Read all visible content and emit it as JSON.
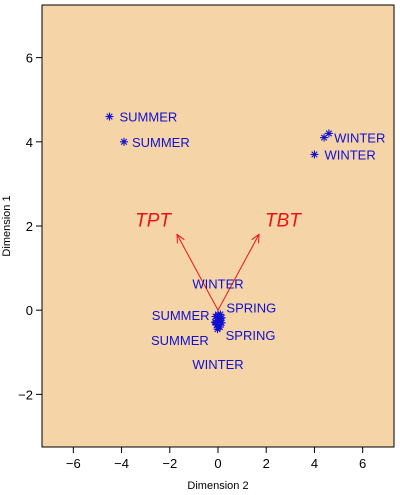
{
  "chart_data": {
    "type": "scatter",
    "title": "",
    "xlabel": "Dimension 2",
    "ylabel": "Dimension 1",
    "xlim": [
      -7.3,
      7.3
    ],
    "ylim": [
      -3.25,
      7.25
    ],
    "xticks": [
      -6,
      -4,
      -2,
      0,
      2,
      4,
      6
    ],
    "yticks": [
      -2,
      0,
      2,
      4,
      6
    ],
    "colors": {
      "background": "#f5d5a8",
      "points": "#1010d0",
      "arrows": "#ee1111"
    },
    "points": [
      {
        "x": -4.5,
        "y": 4.6,
        "label": "SUMMER"
      },
      {
        "x": -3.9,
        "y": 4.0,
        "label": "SUMMER"
      },
      {
        "x": 4.4,
        "y": 4.1,
        "label": "WINTER"
      },
      {
        "x": 4.6,
        "y": 4.2,
        "label": ""
      },
      {
        "x": 4.0,
        "y": 3.7,
        "label": "WINTER"
      },
      {
        "x": 0.0,
        "y": -0.1,
        "label": "WINTER"
      },
      {
        "x": -0.1,
        "y": -0.3,
        "label": "SUMMER"
      },
      {
        "x": 0.1,
        "y": -0.2,
        "label": "SPRING"
      },
      {
        "x": -0.05,
        "y": -0.35,
        "label": "SUMMER"
      },
      {
        "x": 0.15,
        "y": -0.3,
        "label": "SPRING"
      },
      {
        "x": 0.0,
        "y": -0.4,
        "label": "WINTER"
      }
    ],
    "arrows": [
      {
        "label": "TPT",
        "x": -1.7,
        "y": 1.8
      },
      {
        "label": "TBT",
        "x": 1.7,
        "y": 1.8
      }
    ]
  }
}
